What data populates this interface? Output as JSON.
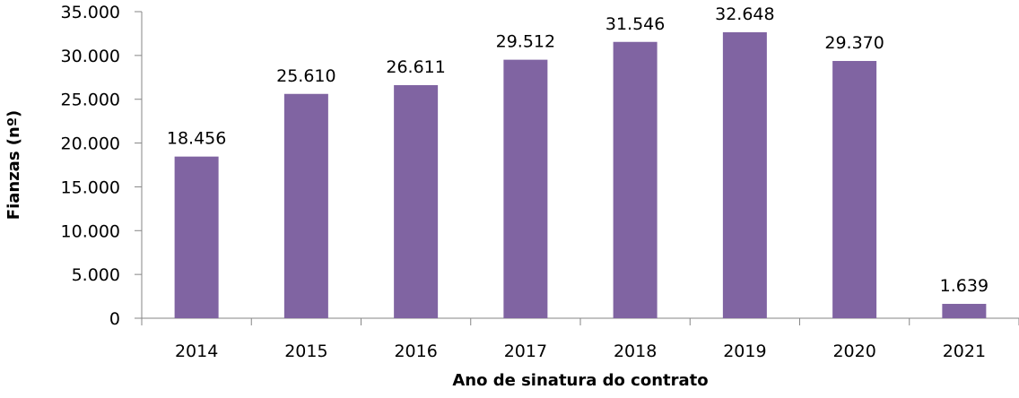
{
  "chart_data": {
    "type": "bar",
    "title": "",
    "xlabel": "Ano de sinatura do contrato",
    "ylabel": "Fianzas (nº)",
    "categories": [
      "2014",
      "2015",
      "2016",
      "2017",
      "2018",
      "2019",
      "2020",
      "2021"
    ],
    "values": [
      18456,
      25610,
      26611,
      29512,
      31546,
      32648,
      29370,
      1639
    ],
    "data_labels": [
      "18.456",
      "25.610",
      "26.611",
      "29.512",
      "31.546",
      "32.648",
      "29.370",
      "1.639"
    ],
    "ylim": [
      0,
      35000
    ],
    "yticks": [
      0,
      5000,
      10000,
      15000,
      20000,
      25000,
      30000,
      35000
    ],
    "ytick_labels": [
      "0",
      "5.000",
      "10.000",
      "15.000",
      "20.000",
      "25.000",
      "30.000",
      "35.000"
    ],
    "grid": false,
    "legend": "none",
    "bar_color": "#8064A2",
    "axis_color": "#868686"
  }
}
